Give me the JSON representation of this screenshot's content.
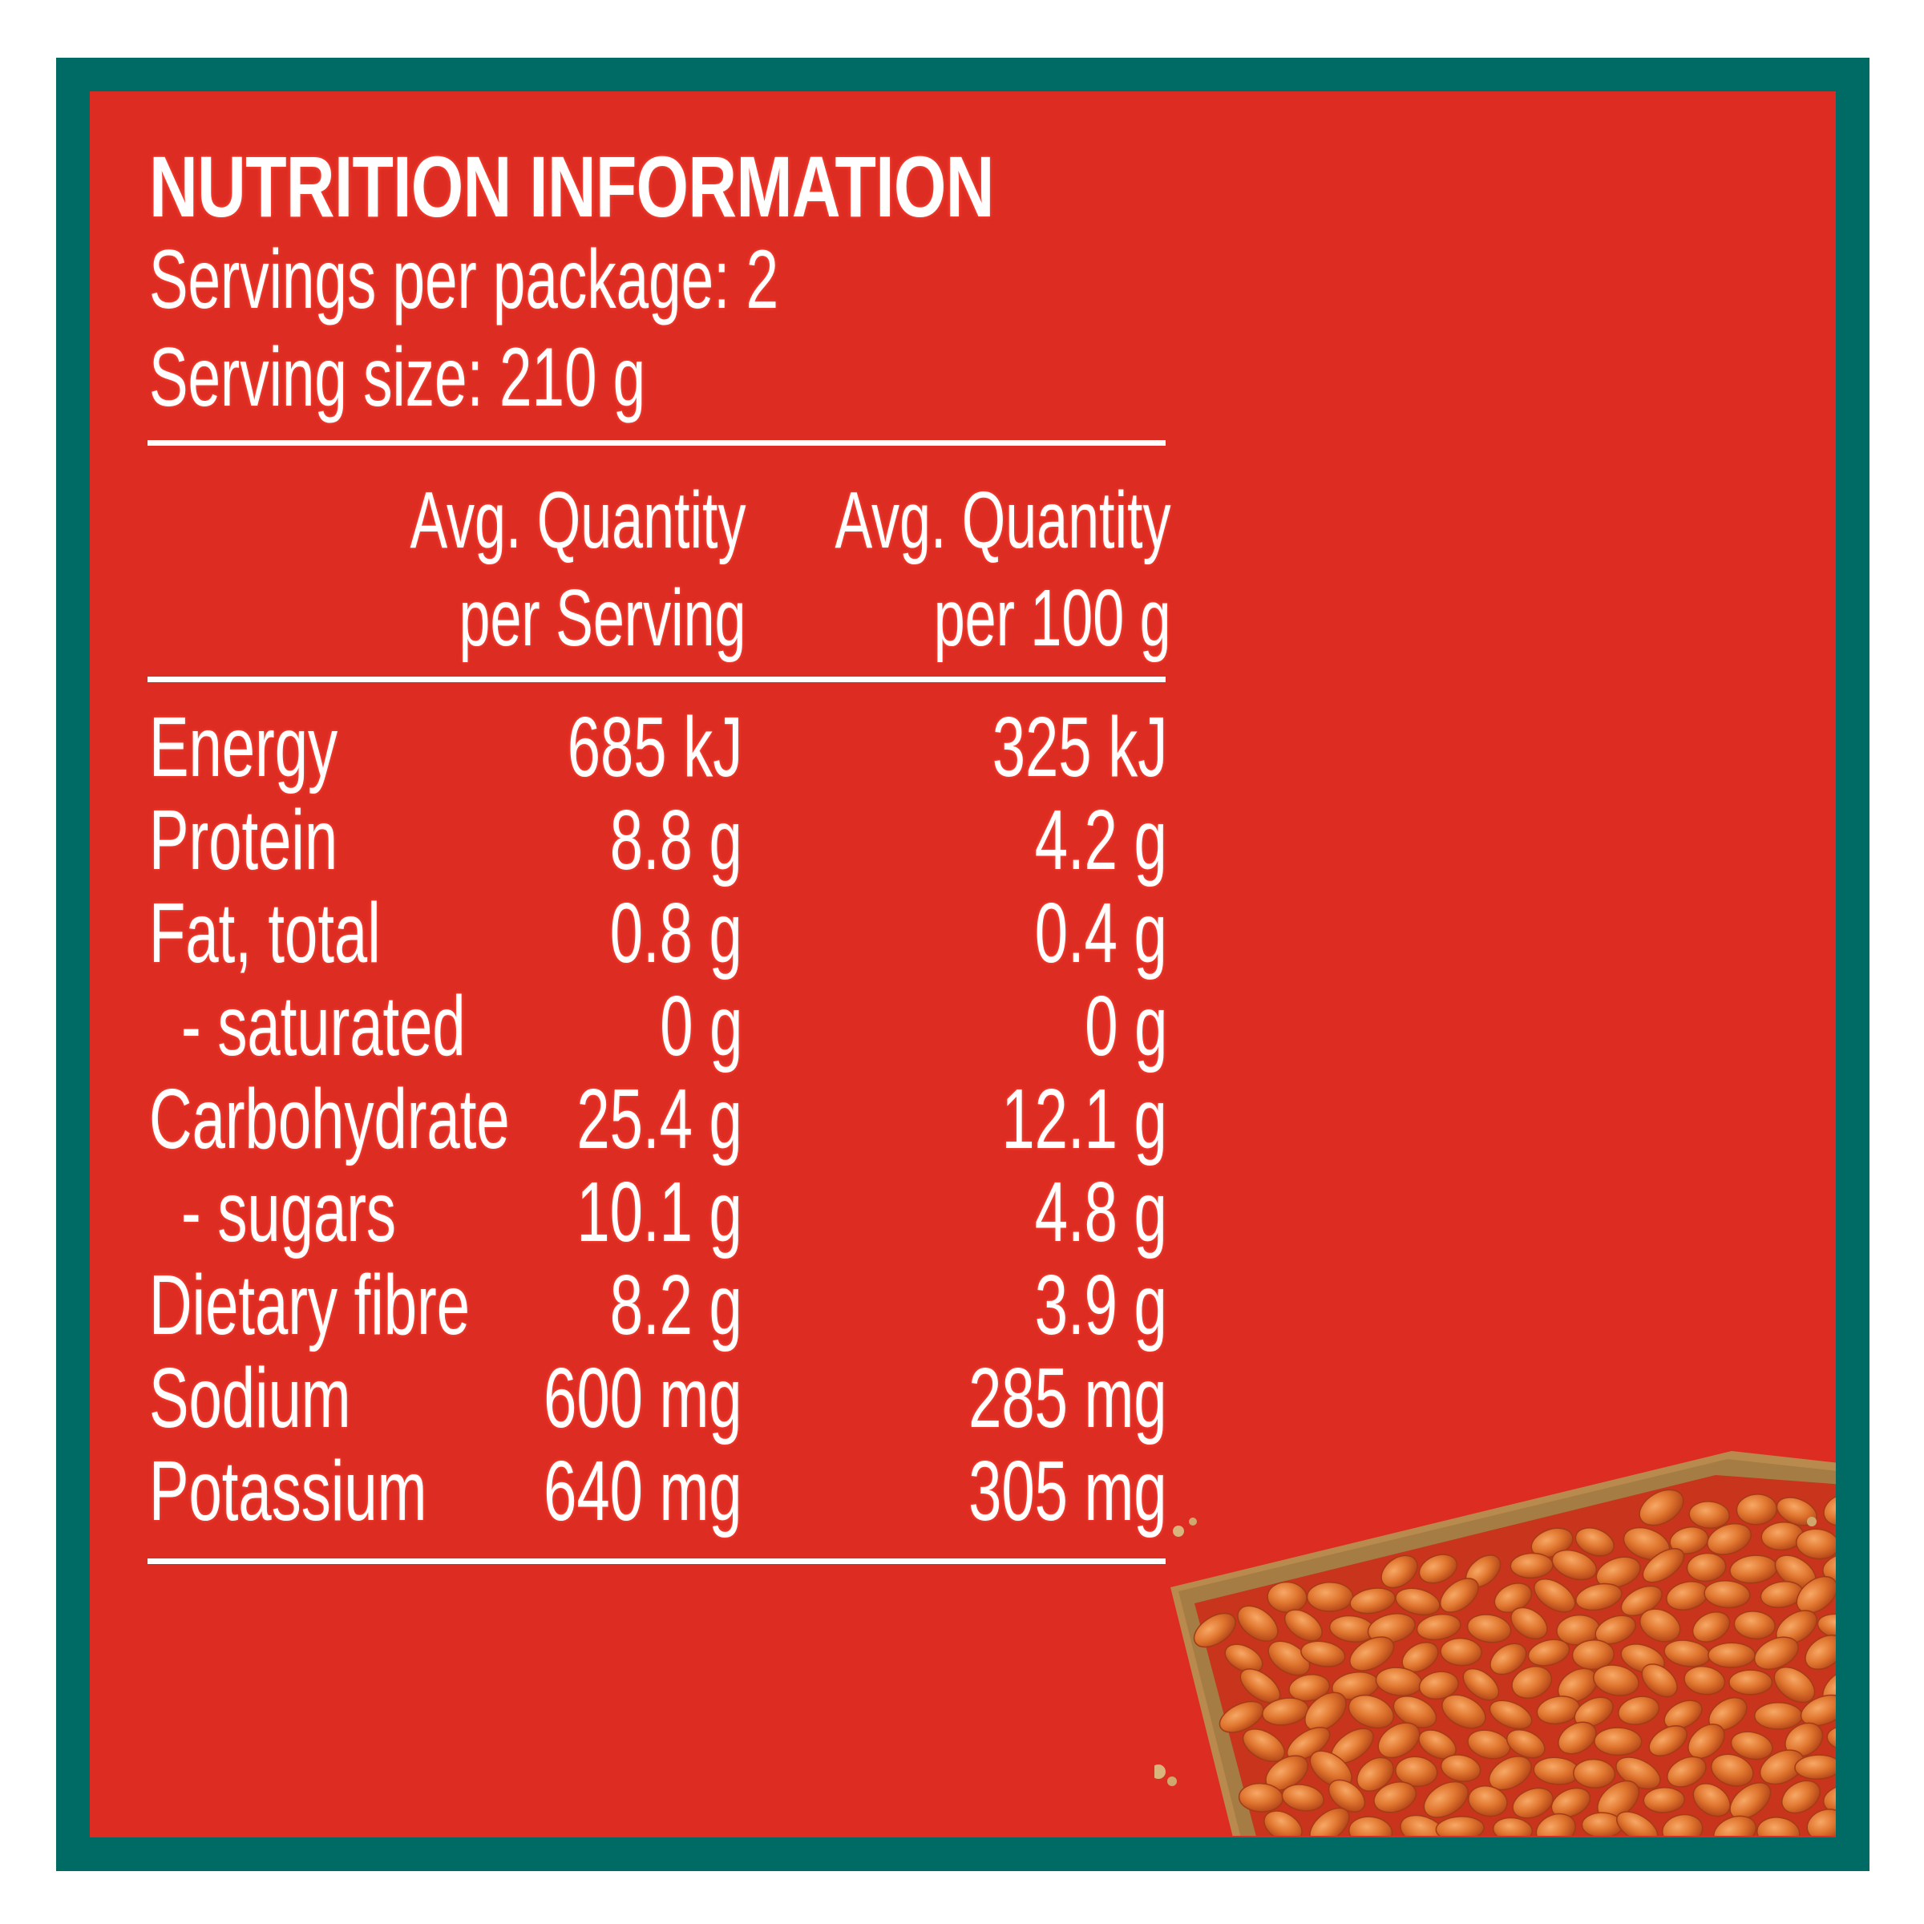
{
  "panel": {
    "title": "NUTRITION INFORMATION",
    "servings_per_package": "Servings per package: 2",
    "serving_size": "Serving size: 210 g"
  },
  "columns": {
    "per_serving": [
      "Avg. Quantity",
      "per Serving"
    ],
    "per_100g": [
      "Avg. Quantity",
      "per 100 g"
    ]
  },
  "rows": [
    {
      "nutrient": "Energy",
      "per_serving": "685 kJ",
      "per_100g": "325 kJ"
    },
    {
      "nutrient": "Protein",
      "per_serving": "8.8 g",
      "per_100g": "4.2 g"
    },
    {
      "nutrient": "Fat, total",
      "per_serving": "0.8 g",
      "per_100g": "0.4 g"
    },
    {
      "nutrient": "- saturated",
      "per_serving": "0 g",
      "per_100g": "0 g"
    },
    {
      "nutrient": "Carbohydrate",
      "per_serving": "25.4 g",
      "per_100g": "12.1 g"
    },
    {
      "nutrient": "- sugars",
      "per_serving": "10.1 g",
      "per_100g": "4.8 g"
    },
    {
      "nutrient": "Dietary fibre",
      "per_serving": "8.2 g",
      "per_100g": "3.9 g"
    },
    {
      "nutrient": "Sodium",
      "per_serving": "600 mg",
      "per_100g": "285 mg"
    },
    {
      "nutrient": "Potassium",
      "per_serving": "640 mg",
      "per_100g": "305 mg"
    }
  ],
  "colors": {
    "border": "#006b64",
    "panel": "#dd2c22",
    "text": "#ffffff"
  },
  "image": {
    "icon": "beans-on-toast-icon"
  }
}
